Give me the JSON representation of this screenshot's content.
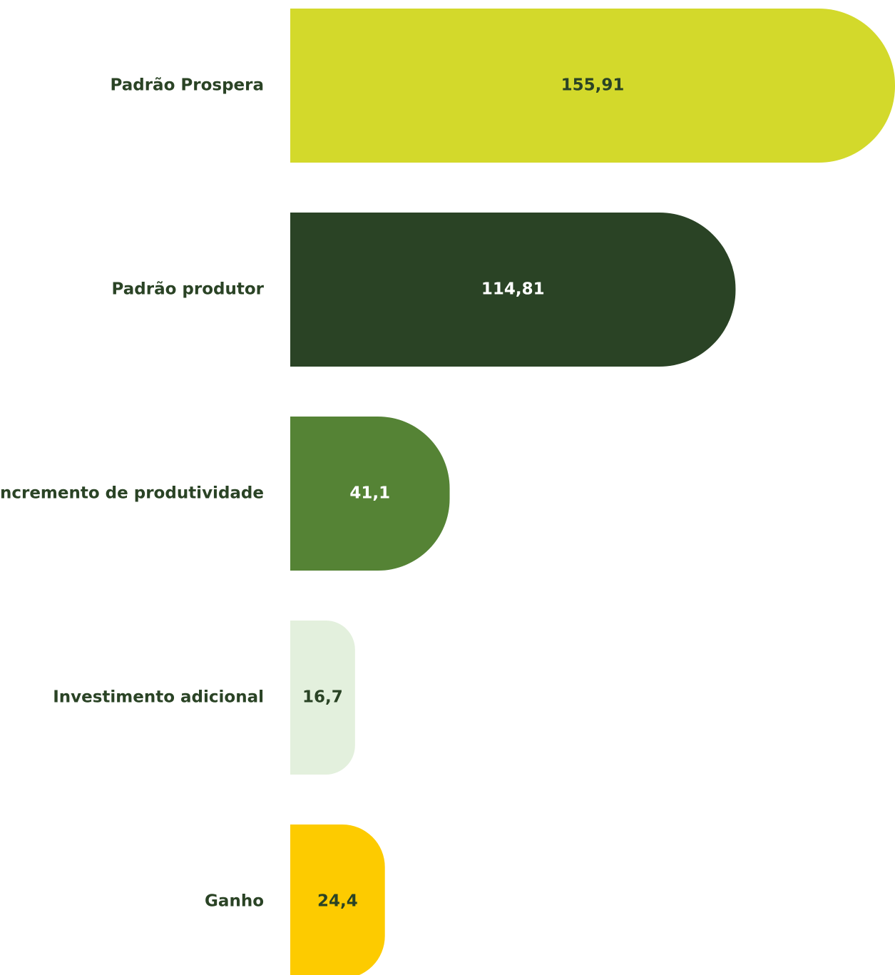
{
  "chart_data": {
    "type": "barh",
    "categories": [
      "Padrão Prospera",
      "Padrão produtor",
      "Incremento de produtividade",
      "Investimento adicional",
      "Ganho"
    ],
    "values": [
      155.91,
      114.81,
      41.1,
      16.7,
      24.4
    ],
    "value_labels": [
      "155,91",
      "114,81",
      "41,1",
      "16,7",
      "24,4"
    ],
    "colors": [
      "#d3d92b",
      "#2a4325",
      "#558335",
      "#e3f0dd",
      "#fdcb00"
    ]
  }
}
